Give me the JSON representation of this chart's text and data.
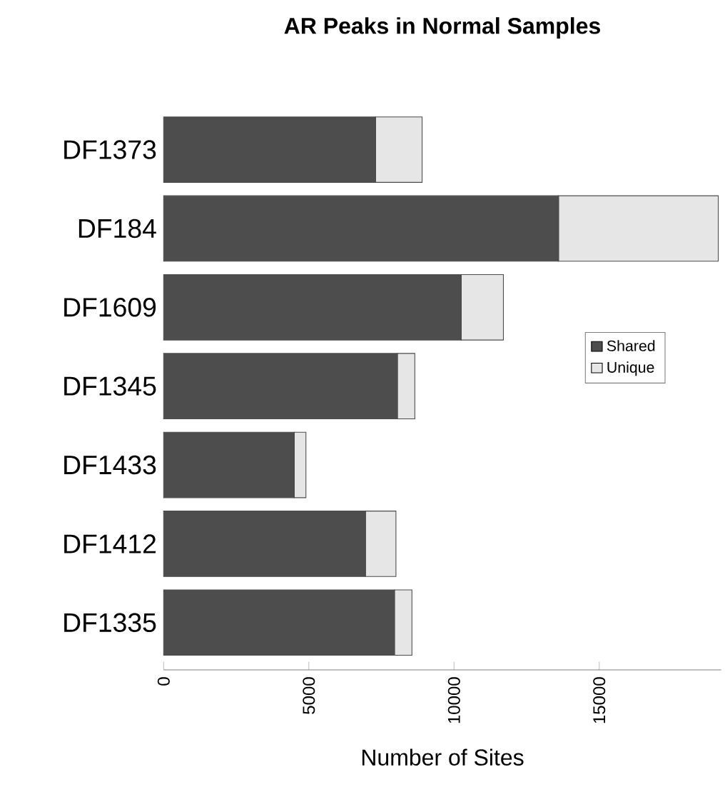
{
  "chart_data": {
    "type": "bar",
    "orientation": "horizontal",
    "stacked": true,
    "title": "AR Peaks in Normal Samples",
    "xlabel": "Number of Sites",
    "categories": [
      "DF1373",
      "DF184",
      "DF1609",
      "DF1345",
      "DF1433",
      "DF1412",
      "DF1335"
    ],
    "series": [
      {
        "name": "Shared",
        "color": "#4d4d4d",
        "values": [
          7300,
          13600,
          10250,
          8050,
          4500,
          6950,
          7950
        ]
      },
      {
        "name": "Unique",
        "color": "#e6e6e6",
        "values": [
          1600,
          5500,
          1450,
          600,
          400,
          1050,
          600
        ]
      }
    ],
    "xlim": [
      0,
      19200
    ],
    "xticks": [
      0,
      5000,
      10000,
      15000
    ],
    "legend": "right"
  }
}
